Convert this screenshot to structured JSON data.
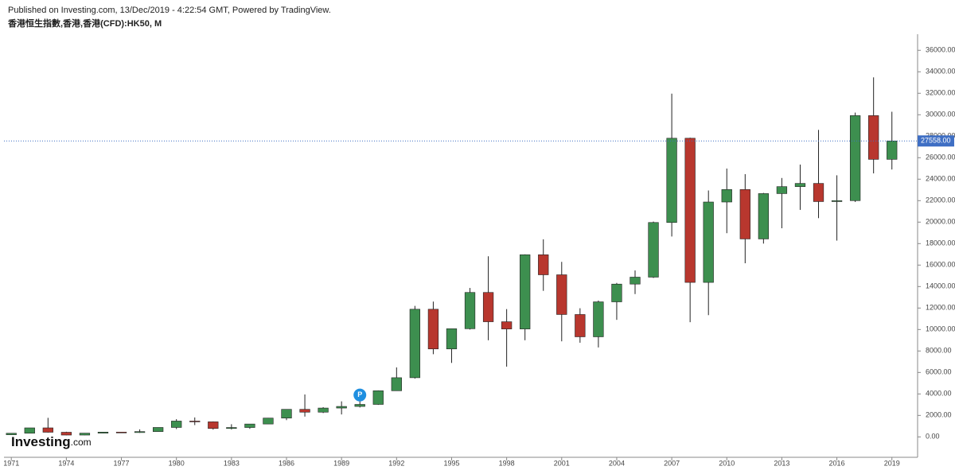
{
  "header": {
    "published": "Published on Investing.com, 13/Dec/2019 - 4:22:54 GMT, Powered by TradingView.",
    "symbol": "香港恒生指數,香港,香港(CFD):HK50, M"
  },
  "logo": {
    "brand": "Investing",
    "suffix": ".com"
  },
  "chart_data": {
    "type": "candlestick",
    "x": [
      1971,
      1972,
      1973,
      1974,
      1975,
      1976,
      1977,
      1978,
      1979,
      1980,
      1981,
      1982,
      1983,
      1984,
      1985,
      1986,
      1987,
      1988,
      1989,
      1990,
      1991,
      1992,
      1993,
      1994,
      1995,
      1996,
      1997,
      1998,
      1999,
      2000,
      2001,
      2002,
      2003,
      2004,
      2005,
      2006,
      2007,
      2008,
      2009,
      2010,
      2011,
      2012,
      2013,
      2014,
      2015,
      2016,
      2017,
      2018,
      2019
    ],
    "open": [
      200,
      340,
      840,
      433,
      171,
      350,
      447,
      404,
      495,
      879,
      1474,
      1405,
      783,
      874,
      1200,
      1752,
      2568,
      2302,
      2687,
      2837,
      3025,
      4297,
      5512,
      11888,
      8191,
      10073,
      13451,
      10723,
      10049,
      16962,
      15096,
      11397,
      9321,
      12576,
      14230,
      14876,
      19965,
      27813,
      14387,
      21873,
      23035,
      18434,
      22657,
      23306,
      23605,
      21914,
      22001,
      29919,
      25846
    ],
    "high": [
      340,
      840,
      1775,
      480,
      360,
      470,
      460,
      700,
      880,
      1650,
      1810,
      1440,
      1180,
      1180,
      1770,
      2570,
      3950,
      2770,
      3310,
      3560,
      4330,
      6470,
      12200,
      12600,
      10070,
      13870,
      16820,
      11900,
      17000,
      18400,
      16300,
      11980,
      12700,
      14340,
      15500,
      20050,
      31960,
      27860,
      22950,
      24990,
      24470,
      22720,
      24110,
      25360,
      28590,
      24360,
      30200,
      33480,
      30280
    ],
    "low": [
      200,
      330,
      400,
      150,
      160,
      350,
      400,
      380,
      490,
      730,
      1100,
      676,
      690,
      750,
      1200,
      1560,
      1890,
      2220,
      2090,
      2740,
      2980,
      4300,
      5430,
      7700,
      6890,
      10000,
      9000,
      6540,
      9000,
      13600,
      8900,
      8770,
      8330,
      10900,
      13300,
      14800,
      18660,
      10680,
      11340,
      18970,
      16170,
      18000,
      19430,
      21140,
      20370,
      18280,
      21880,
      24540,
      24900
    ],
    "close": [
      340,
      840,
      433,
      171,
      350,
      447,
      404,
      495,
      879,
      1474,
      1405,
      783,
      874,
      1200,
      1752,
      2568,
      2302,
      2687,
      2837,
      3025,
      4297,
      5512,
      11888,
      8191,
      10073,
      13451,
      10723,
      10049,
      16962,
      15096,
      11397,
      9321,
      12576,
      14230,
      14876,
      19965,
      27813,
      14387,
      21873,
      23035,
      18434,
      22657,
      23306,
      23605,
      21914,
      22001,
      29919,
      25846,
      27558
    ],
    "up_color": "#3d8f4f",
    "down_color": "#b8372e",
    "xlim": [
      1970.6,
      2020.4
    ],
    "xticks": [
      1971,
      1974,
      1977,
      1980,
      1983,
      1986,
      1989,
      1992,
      1995,
      1998,
      2001,
      2004,
      2007,
      2010,
      2013,
      2016,
      2019
    ],
    "ylim": [
      -1900,
      37500
    ],
    "yticks": [
      {
        "value": 0,
        "label": "0.00"
      },
      {
        "value": 2000,
        "label": "2000.00"
      },
      {
        "value": 4000,
        "label": "4000.00"
      },
      {
        "value": 6000,
        "label": "6000.00"
      },
      {
        "value": 8000,
        "label": "8000.00"
      },
      {
        "value": 10000,
        "label": "10000.00"
      },
      {
        "value": 12000,
        "label": "12000.00"
      },
      {
        "value": 14000,
        "label": "14000.00"
      },
      {
        "value": 16000,
        "label": "16000.00"
      },
      {
        "value": 18000,
        "label": "18000.00"
      },
      {
        "value": 20000,
        "label": "20000.00"
      },
      {
        "value": 22000,
        "label": "22000.00"
      },
      {
        "value": 24000,
        "label": "24000.00"
      },
      {
        "value": 26000,
        "label": "26000.00"
      },
      {
        "value": 28000,
        "label": "28000.00"
      },
      {
        "value": 30000,
        "label": "30000.00"
      },
      {
        "value": 32000,
        "label": "32000.00"
      },
      {
        "value": 34000,
        "label": "34000.00"
      },
      {
        "value": 36000,
        "label": "36000.00"
      }
    ],
    "price_line": {
      "value": 27558,
      "label": "27558.00",
      "color": "#3f6fc4"
    },
    "marker": {
      "x": 1990,
      "y": 3900,
      "label": "P",
      "color": "#1f8fe0"
    }
  }
}
